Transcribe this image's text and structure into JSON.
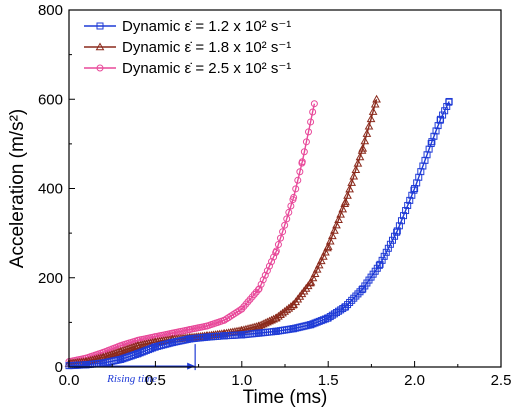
{
  "chart_data": {
    "type": "line",
    "xlabel": "Time (ms)",
    "ylabel": "Acceleration (m/s²)",
    "xlim": [
      0,
      2.5
    ],
    "ylim": [
      0,
      800
    ],
    "xticks": [
      "0.0",
      "0.5",
      "1.0",
      "1.5",
      "2.0",
      "2.5"
    ],
    "yticks": [
      "0",
      "200",
      "400",
      "600",
      "800"
    ],
    "grid": false,
    "legend_position": "top-left",
    "series": [
      {
        "name": "Dynamic ε̇ = 1.2 x 10² s⁻¹",
        "color": "#1f3bd6",
        "marker": "square",
        "x": [
          0,
          0.1,
          0.2,
          0.3,
          0.4,
          0.5,
          0.6,
          0.7,
          0.8,
          0.9,
          1.0,
          1.1,
          1.2,
          1.3,
          1.4,
          1.5,
          1.6,
          1.7,
          1.8,
          1.9,
          2.0,
          2.1,
          2.15,
          2.2
        ],
        "y": [
          3,
          5,
          9,
          17,
          30,
          45,
          55,
          63,
          67,
          70,
          72,
          76,
          80,
          86,
          95,
          110,
          135,
          175,
          230,
          305,
          400,
          505,
          555,
          595
        ]
      },
      {
        "name": "Dynamic ε̇ = 1.8 x 10² s⁻¹",
        "color": "#8b2a1c",
        "marker": "triangle",
        "x": [
          0,
          0.1,
          0.2,
          0.3,
          0.4,
          0.5,
          0.6,
          0.7,
          0.8,
          0.9,
          1.0,
          1.1,
          1.2,
          1.3,
          1.4,
          1.5,
          1.6,
          1.7,
          1.78
        ],
        "y": [
          8,
          12,
          22,
          35,
          48,
          56,
          62,
          66,
          70,
          75,
          82,
          92,
          110,
          140,
          190,
          270,
          370,
          490,
          600
        ]
      },
      {
        "name": "Dynamic ε̇ = 2.5 x 10² s⁻¹",
        "color": "#e8499a",
        "marker": "circle",
        "x": [
          0,
          0.1,
          0.2,
          0.3,
          0.4,
          0.5,
          0.6,
          0.7,
          0.8,
          0.9,
          1.0,
          1.1,
          1.2,
          1.3,
          1.35,
          1.42
        ],
        "y": [
          12,
          20,
          33,
          48,
          60,
          68,
          76,
          84,
          92,
          105,
          130,
          175,
          260,
          380,
          460,
          590
        ]
      }
    ],
    "annotation": {
      "text": "Rising time",
      "x_start": 0,
      "x_end": 0.73,
      "y": 2
    }
  }
}
